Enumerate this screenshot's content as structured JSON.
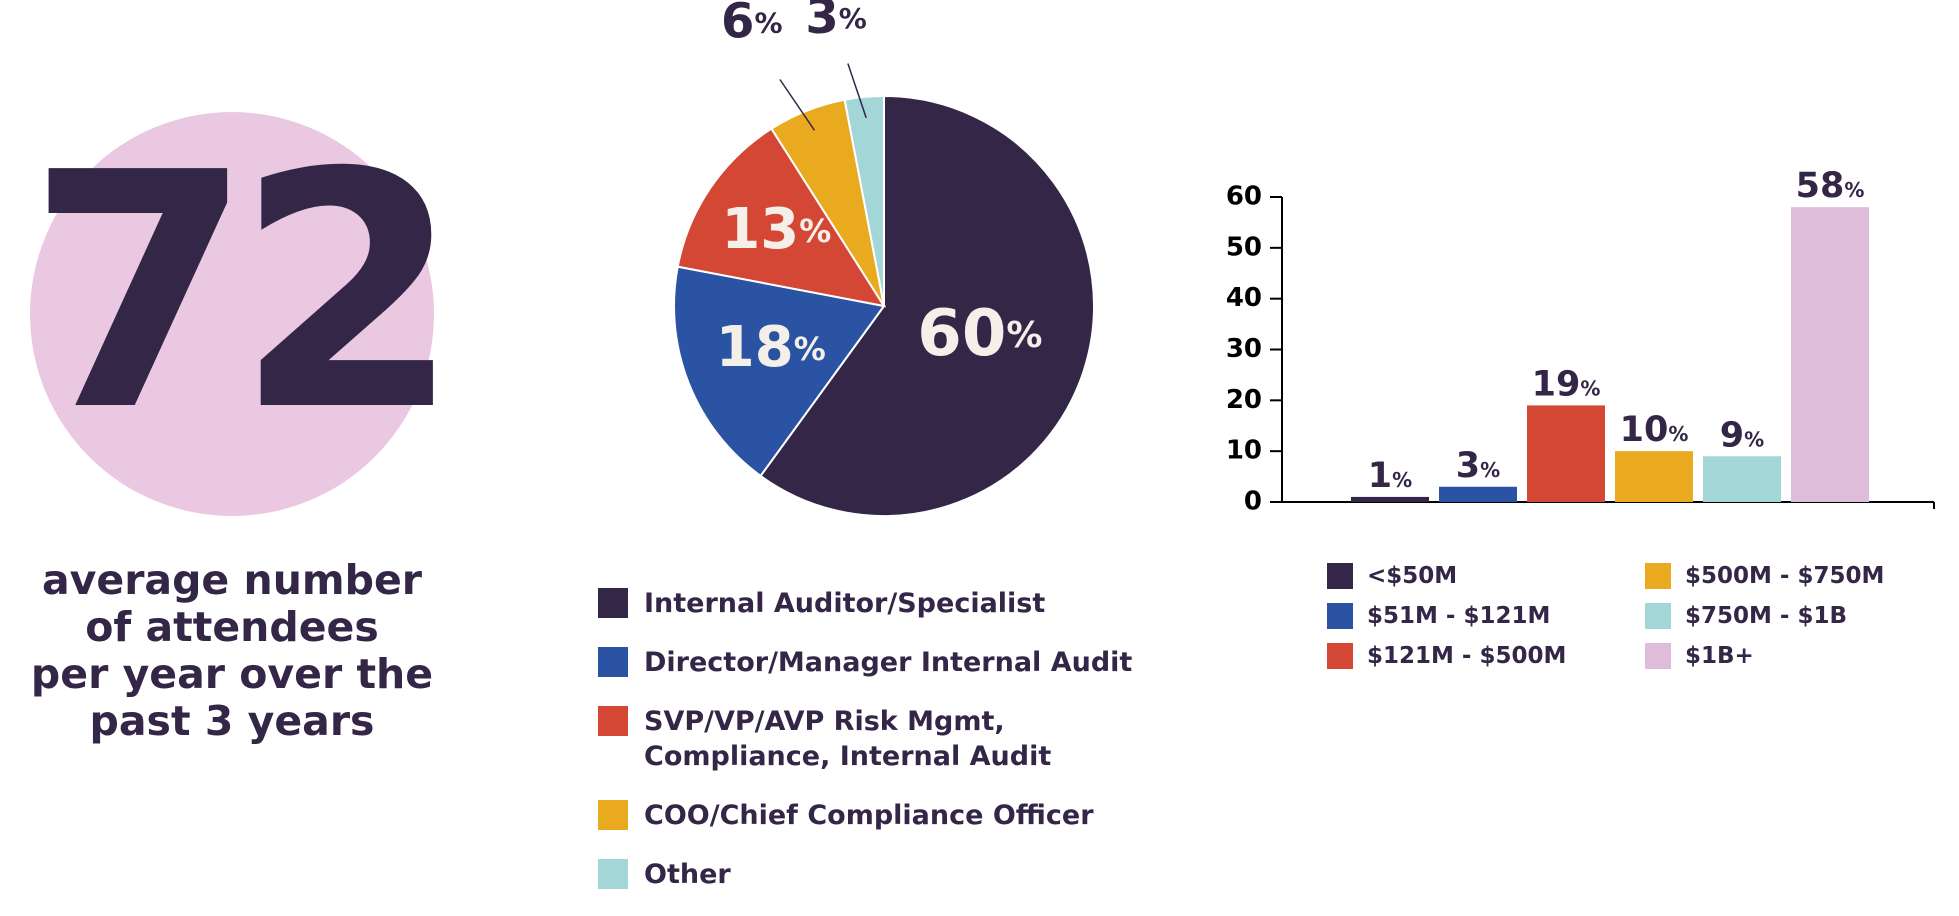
{
  "stat": {
    "number": "72",
    "caption": [
      "average number",
      "of attendees",
      "per year over the",
      "past 3 years"
    ]
  },
  "colors": {
    "navy": "#342647",
    "blue": "#2b53a3",
    "red": "#d34734",
    "gold": "#eaaa20",
    "teal": "#a2d6d7",
    "pink": "#ddbdd9",
    "circle": "#eac8e1",
    "label_light": "#f5efe9"
  },
  "chart_data": [
    {
      "type": "pie",
      "title": "",
      "slices": [
        {
          "label": "Internal Auditor/Specialist",
          "value": 60,
          "display": "60",
          "unit": "%",
          "color": "#342647"
        },
        {
          "label": "Director/Manager Internal Audit",
          "value": 18,
          "display": "18",
          "unit": "%",
          "color": "#2b53a3"
        },
        {
          "label": "SVP/VP/AVP Risk Mgmt,\nCompliance, Internal Audit",
          "value": 13,
          "display": "13",
          "unit": "%",
          "color": "#d34734"
        },
        {
          "label": "COO/Chief Compliance Officer",
          "value": 6,
          "display": "6",
          "unit": "%",
          "color": "#eaaa20"
        },
        {
          "label": "Other",
          "value": 3,
          "display": "3",
          "unit": "%",
          "color": "#a2d6d7"
        }
      ],
      "legend_position": "bottom"
    },
    {
      "type": "bar",
      "title": "",
      "categories": [
        "<$50M",
        "$51M - $121M",
        "$121M - $500M",
        "$500M - $750M",
        "$750M - $1B",
        "$1B+"
      ],
      "values": [
        1,
        3,
        19,
        10,
        9,
        58
      ],
      "value_labels": [
        "1",
        "3",
        "19",
        "10",
        "9",
        "58"
      ],
      "unit": "%",
      "colors": [
        "#342647",
        "#2b53a3",
        "#d34734",
        "#eaaa20",
        "#a2d6d7",
        "#ddbdd9"
      ],
      "ylim": [
        0,
        60
      ],
      "yticks": [
        "0",
        "10",
        "20",
        "30",
        "40",
        "50",
        "60"
      ],
      "xlabel": "",
      "ylabel": "",
      "grid": false,
      "legend_position": "bottom"
    }
  ]
}
